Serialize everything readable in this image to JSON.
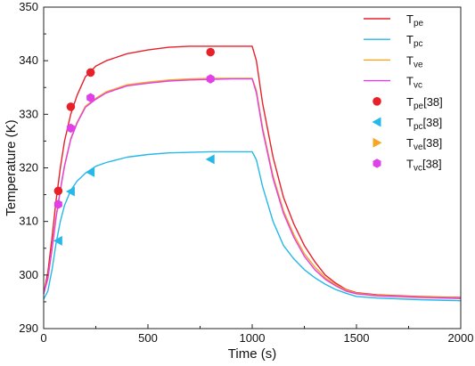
{
  "chart_data": {
    "type": "line",
    "title": "",
    "xlabel": "Time (s)",
    "ylabel": "Temperature (K)",
    "xlim": [
      0,
      2000
    ],
    "ylim": [
      290,
      350
    ],
    "xticks": [
      0,
      500,
      1000,
      1500,
      2000
    ],
    "yticks": [
      290,
      300,
      310,
      320,
      330,
      340,
      350
    ],
    "grid": false,
    "legend_position": "top-right",
    "series": [
      {
        "name": "T",
        "sub": "pe",
        "kind": "line",
        "color": "#e8202a",
        "x": [
          0,
          20,
          40,
          60,
          80,
          100,
          130,
          160,
          200,
          250,
          300,
          400,
          500,
          600,
          700,
          800,
          900,
          1000,
          1020,
          1050,
          1100,
          1150,
          1200,
          1250,
          1300,
          1350,
          1400,
          1450,
          1500,
          1600,
          1800,
          2000
        ],
        "y": [
          296.5,
          300.5,
          307,
          314,
          320,
          325,
          330,
          333.5,
          337,
          339,
          340,
          341.3,
          342,
          342.5,
          342.7,
          342.7,
          342.7,
          342.7,
          340,
          332,
          322,
          314.5,
          309.5,
          305.5,
          302.5,
          300,
          298.5,
          297.3,
          296.7,
          296.3,
          296,
          295.8
        ]
      },
      {
        "name": "T",
        "sub": "pc",
        "kind": "line",
        "color": "#25b8e8",
        "x": [
          0,
          20,
          40,
          60,
          80,
          100,
          130,
          160,
          200,
          250,
          300,
          400,
          500,
          600,
          700,
          800,
          900,
          1000,
          1020,
          1050,
          1100,
          1150,
          1200,
          1250,
          1300,
          1350,
          1400,
          1450,
          1500,
          1600,
          1800,
          2000
        ],
        "y": [
          295.5,
          297,
          301,
          306,
          310,
          313,
          315.8,
          317.5,
          319,
          320.3,
          321,
          322,
          322.5,
          322.8,
          322.9,
          323,
          323,
          323,
          321.5,
          316.5,
          310,
          305.5,
          303,
          301,
          299.5,
          298.3,
          297.3,
          296.6,
          296,
          295.7,
          295.4,
          295.2
        ]
      },
      {
        "name": "T",
        "sub": "ve",
        "kind": "line",
        "color": "#f5a623",
        "x": [
          0,
          20,
          40,
          60,
          80,
          100,
          130,
          160,
          200,
          250,
          300,
          400,
          500,
          600,
          700,
          800,
          900,
          1000,
          1020,
          1050,
          1100,
          1150,
          1200,
          1250,
          1300,
          1350,
          1400,
          1450,
          1500,
          1600,
          1800,
          2000
        ],
        "y": [
          296.5,
          299.5,
          305,
          311,
          316,
          320.5,
          325.5,
          328.5,
          331.5,
          333,
          334.2,
          335.5,
          336,
          336.4,
          336.6,
          336.7,
          336.7,
          336.7,
          334.5,
          327.5,
          318.5,
          312,
          307.5,
          304,
          301.5,
          299.5,
          298.2,
          297.2,
          296.6,
          296.2,
          295.9,
          295.7
        ]
      },
      {
        "name": "T",
        "sub": "vc",
        "kind": "line",
        "color": "#e040e8",
        "x": [
          0,
          20,
          40,
          60,
          80,
          100,
          130,
          160,
          200,
          250,
          300,
          400,
          500,
          600,
          700,
          800,
          900,
          1000,
          1020,
          1050,
          1100,
          1150,
          1200,
          1250,
          1300,
          1350,
          1400,
          1450,
          1500,
          1600,
          1800,
          2000
        ],
        "y": [
          296.5,
          299.3,
          304.8,
          310.8,
          315.8,
          320.3,
          325.3,
          328.3,
          331.3,
          332.8,
          334,
          335.3,
          335.8,
          336.2,
          336.4,
          336.5,
          336.6,
          336.6,
          334,
          327,
          318,
          311.5,
          307,
          303.5,
          301,
          299.2,
          298,
          297,
          296.5,
          296.1,
          295.8,
          295.6
        ]
      },
      {
        "name": "T",
        "sub": "pe",
        "ref": "[38]",
        "kind": "marker",
        "marker": "circle",
        "color": "#e8202a",
        "x": [
          70,
          130,
          225,
          800
        ],
        "y": [
          315.7,
          331.4,
          337.8,
          341.6
        ]
      },
      {
        "name": "T",
        "sub": "pc",
        "ref": "[38]",
        "kind": "marker",
        "marker": "triangle-left",
        "color": "#25b8e8",
        "x": [
          70,
          130,
          225,
          800
        ],
        "y": [
          306.4,
          315.6,
          319.2,
          321.6
        ]
      },
      {
        "name": "T",
        "sub": "ve",
        "ref": "[38]",
        "kind": "marker",
        "marker": "triangle-right",
        "color": "#f5a623",
        "x": [],
        "y": []
      },
      {
        "name": "T",
        "sub": "vc",
        "ref": "[38]",
        "kind": "marker",
        "marker": "hexagon",
        "color": "#e040e8",
        "x": [
          70,
          130,
          225,
          800
        ],
        "y": [
          313.2,
          327.4,
          333.1,
          336.6
        ]
      }
    ]
  }
}
